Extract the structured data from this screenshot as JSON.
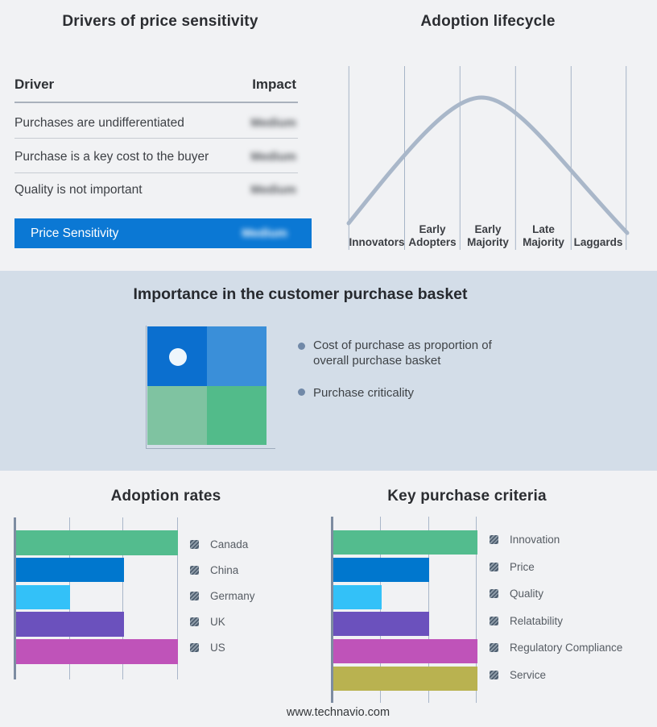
{
  "colors": {
    "page_background": "#f1f2f4",
    "band_background": "#d3dde8",
    "accent_blue": "#0b78d4",
    "curve": "#a9b7c9",
    "gridline": "#a9b6c9",
    "axis": "#7d8ca1"
  },
  "drivers_panel": {
    "title": "Drivers of price sensitivity",
    "col_driver": "Driver",
    "col_impact": "Impact",
    "rows": [
      {
        "driver": "Purchases are undifferentiated",
        "impact": "Medium"
      },
      {
        "driver": "Purchase is a key cost to the buyer",
        "impact": "Medium"
      },
      {
        "driver": "Quality is not important",
        "impact": "Medium"
      }
    ],
    "highlight": {
      "driver": "Price Sensitivity",
      "impact": "Medium",
      "background": "#0b78d4"
    }
  },
  "basket_panel": {
    "title": "Importance in the customer purchase basket",
    "bullets": [
      "Cost of purchase as proportion of overall purchase basket",
      "Purchase criticality"
    ],
    "quadrant_colors": {
      "top_left": "#0b6fcf",
      "top_right": "#3a8fd9",
      "bottom_left": "#7fc3a1",
      "bottom_right": "#52bb8a"
    },
    "dot_color": "#eef6fc",
    "dot_quadrant": "top_left"
  },
  "footer": {
    "url": "www.technavio.com"
  },
  "chart_data": [
    {
      "type": "bar",
      "title": "Adoption rates",
      "orientation": "horizontal",
      "categories": [
        "Canada",
        "China",
        "Germany",
        "UK",
        "US"
      ],
      "values": [
        3,
        2,
        1,
        2,
        3
      ],
      "colors": [
        "#53bc8e",
        "#0077ce",
        "#33c1f8",
        "#6b51bd",
        "#bf53b9"
      ],
      "xlim": [
        0,
        3
      ],
      "grid": true,
      "legend_position": "right",
      "axis_labels_hidden": true
    },
    {
      "type": "bar",
      "title": "Key purchase criteria",
      "orientation": "horizontal",
      "categories": [
        "Innovation",
        "Price",
        "Quality",
        "Relatability",
        "Regulatory Compliance",
        "Service"
      ],
      "values": [
        3,
        2,
        1,
        2,
        3,
        3
      ],
      "colors": [
        "#53bc8e",
        "#0077ce",
        "#33c1f8",
        "#6b51bd",
        "#bf53b9",
        "#b9b250"
      ],
      "xlim": [
        0,
        3
      ],
      "grid": true,
      "legend_position": "right",
      "axis_labels_hidden": true
    },
    {
      "type": "line",
      "title": "Adoption lifecycle",
      "categories": [
        "Innovators",
        "Early Adopters",
        "Early Majority",
        "Late Majority",
        "Laggards"
      ],
      "shape": "bell curve rising from Innovators, peaking at Early Majority, falling through Laggards",
      "curve_color": "#a9b7c9",
      "grid": true
    }
  ]
}
